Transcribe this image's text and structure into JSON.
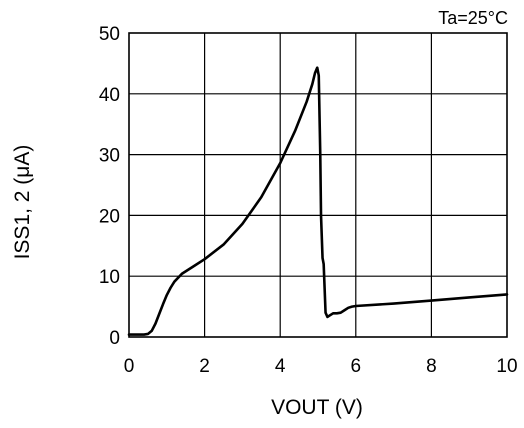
{
  "chart_data": {
    "type": "line",
    "title": "",
    "annotation": "Ta=25°C",
    "xlabel": "VOUT (V)",
    "ylabel": "ISS1, 2 (μA)",
    "xlim": [
      0,
      10
    ],
    "ylim": [
      0,
      50
    ],
    "x_ticks": [
      0,
      2,
      4,
      6,
      8,
      10
    ],
    "y_ticks": [
      0,
      10,
      20,
      30,
      40,
      50
    ],
    "x_tick_labels": [
      "0",
      "2",
      "4",
      "6",
      "8",
      "10"
    ],
    "y_tick_labels": [
      "0",
      "10",
      "20",
      "30",
      "40",
      "50"
    ],
    "grid": true,
    "legend": "none",
    "colors": {
      "line": "#000000",
      "grid": "#000000",
      "background": "#ffffff"
    },
    "series": [
      {
        "x": [
          0.0,
          0.4,
          0.5,
          0.6,
          0.7,
          0.8,
          0.9,
          1.0,
          1.1,
          1.2,
          1.4,
          1.7,
          2.0,
          2.5,
          3.0,
          3.5,
          4.0,
          4.4,
          4.7,
          4.85,
          4.92,
          4.98,
          5.02,
          5.06,
          5.08,
          5.12,
          5.15,
          5.2,
          5.25,
          5.3,
          5.4,
          5.5,
          5.6,
          5.7,
          5.8,
          5.9,
          6.0,
          7.0,
          8.0,
          9.0,
          10.0
        ],
        "y": [
          0.4,
          0.4,
          0.5,
          1.0,
          2.2,
          3.8,
          5.4,
          6.9,
          8.1,
          9.1,
          10.4,
          11.6,
          12.8,
          15.2,
          18.6,
          23.0,
          28.6,
          34.0,
          38.7,
          41.6,
          43.4,
          44.3,
          43.0,
          30.0,
          20.0,
          13.0,
          12.0,
          4.0,
          3.3,
          3.5,
          3.9,
          3.9,
          4.0,
          4.4,
          4.8,
          5.0,
          5.1,
          5.5,
          6.0,
          6.5,
          7.0
        ]
      }
    ]
  }
}
